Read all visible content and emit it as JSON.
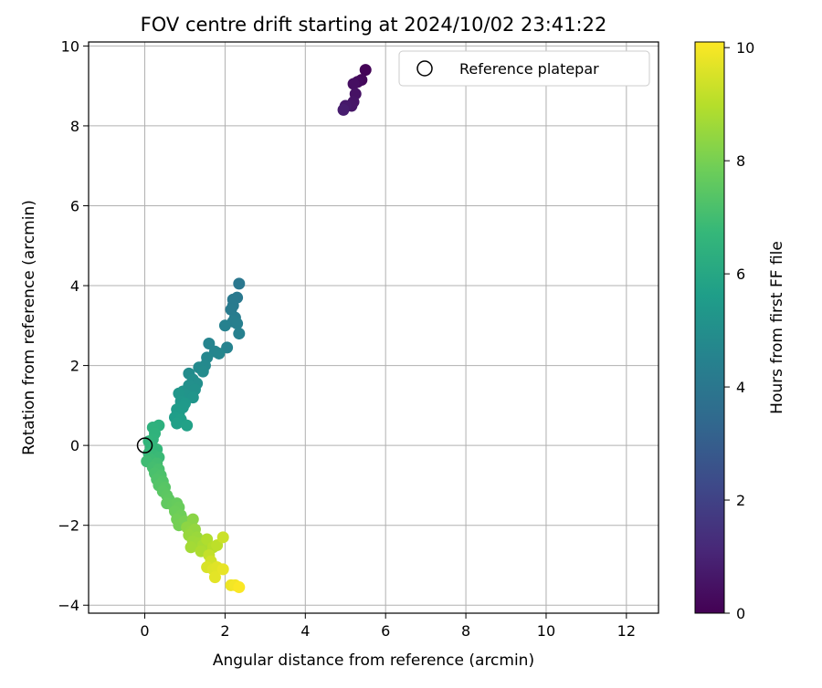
{
  "chart_data": {
    "type": "scatter",
    "title": "FOV centre drift starting at 2024/10/02 23:41:22",
    "xlabel": "Angular distance from reference (arcmin)",
    "ylabel": "Rotation from reference (arcmin)",
    "xlim": [
      -1.4,
      12.8
    ],
    "ylim": [
      -4.2,
      10.1
    ],
    "xticks": [
      0,
      2,
      4,
      6,
      8,
      10,
      12
    ],
    "yticks": [
      -4,
      -2,
      0,
      2,
      4,
      6,
      8,
      10
    ],
    "grid": true,
    "legend": {
      "placement": "top-right",
      "entries": [
        "Reference platepar"
      ]
    },
    "reference_point": {
      "x": 0,
      "y": 0
    },
    "colorbar": {
      "label": "Hours from first FF file",
      "range": [
        0,
        10.1
      ],
      "ticks": [
        0,
        2,
        4,
        6,
        8,
        10
      ],
      "colormap": [
        "#440154",
        "#482878",
        "#3e4989",
        "#31688e",
        "#26828e",
        "#1f9e89",
        "#35b779",
        "#6ece58",
        "#b5de2b",
        "#fde725"
      ]
    },
    "points": [
      {
        "x": 5.5,
        "y": 9.4,
        "h": 0.1
      },
      {
        "x": 5.4,
        "y": 9.15,
        "h": 0.2
      },
      {
        "x": 5.3,
        "y": 9.1,
        "h": 0.3
      },
      {
        "x": 5.2,
        "y": 9.05,
        "h": 0.4
      },
      {
        "x": 5.25,
        "y": 8.8,
        "h": 0.5
      },
      {
        "x": 5.2,
        "y": 8.6,
        "h": 0.55
      },
      {
        "x": 5.15,
        "y": 8.5,
        "h": 0.6
      },
      {
        "x": 5.0,
        "y": 8.5,
        "h": 0.7
      },
      {
        "x": 4.95,
        "y": 8.4,
        "h": 0.8
      },
      {
        "x": 2.35,
        "y": 4.05,
        "h": 4.0
      },
      {
        "x": 2.3,
        "y": 3.7,
        "h": 4.05
      },
      {
        "x": 2.2,
        "y": 3.65,
        "h": 4.1
      },
      {
        "x": 2.2,
        "y": 3.5,
        "h": 4.15
      },
      {
        "x": 2.15,
        "y": 3.4,
        "h": 4.2
      },
      {
        "x": 2.25,
        "y": 3.2,
        "h": 4.25
      },
      {
        "x": 2.2,
        "y": 3.1,
        "h": 4.3
      },
      {
        "x": 2.3,
        "y": 3.05,
        "h": 4.35
      },
      {
        "x": 2.35,
        "y": 2.8,
        "h": 4.4
      },
      {
        "x": 2.0,
        "y": 3.0,
        "h": 4.45
      },
      {
        "x": 2.05,
        "y": 2.45,
        "h": 4.5
      },
      {
        "x": 1.6,
        "y": 2.55,
        "h": 4.55
      },
      {
        "x": 1.75,
        "y": 2.35,
        "h": 4.6
      },
      {
        "x": 1.85,
        "y": 2.3,
        "h": 4.65
      },
      {
        "x": 1.55,
        "y": 2.2,
        "h": 4.7
      },
      {
        "x": 1.5,
        "y": 2.0,
        "h": 4.75
      },
      {
        "x": 1.35,
        "y": 1.95,
        "h": 4.8
      },
      {
        "x": 1.45,
        "y": 1.85,
        "h": 4.85
      },
      {
        "x": 1.1,
        "y": 1.8,
        "h": 4.9
      },
      {
        "x": 1.2,
        "y": 1.65,
        "h": 4.95
      },
      {
        "x": 1.3,
        "y": 1.55,
        "h": 5.0
      },
      {
        "x": 1.1,
        "y": 1.5,
        "h": 5.05
      },
      {
        "x": 1.25,
        "y": 1.4,
        "h": 5.1
      },
      {
        "x": 0.95,
        "y": 1.35,
        "h": 5.15
      },
      {
        "x": 1.05,
        "y": 1.25,
        "h": 5.2
      },
      {
        "x": 1.2,
        "y": 1.2,
        "h": 5.25
      },
      {
        "x": 0.85,
        "y": 1.3,
        "h": 5.3
      },
      {
        "x": 0.9,
        "y": 1.1,
        "h": 5.35
      },
      {
        "x": 1.0,
        "y": 1.05,
        "h": 5.4
      },
      {
        "x": 0.95,
        "y": 0.95,
        "h": 5.45
      },
      {
        "x": 0.8,
        "y": 0.9,
        "h": 5.5
      },
      {
        "x": 0.85,
        "y": 0.8,
        "h": 5.55
      },
      {
        "x": 0.75,
        "y": 0.7,
        "h": 5.6
      },
      {
        "x": 0.9,
        "y": 0.65,
        "h": 5.65
      },
      {
        "x": 0.8,
        "y": 0.55,
        "h": 5.7
      },
      {
        "x": 1.05,
        "y": 0.5,
        "h": 5.75
      },
      {
        "x": 0.35,
        "y": 0.5,
        "h": 6.4
      },
      {
        "x": 0.2,
        "y": 0.45,
        "h": 6.45
      },
      {
        "x": 0.25,
        "y": 0.3,
        "h": 6.5
      },
      {
        "x": 0.2,
        "y": 0.15,
        "h": 6.55
      },
      {
        "x": 0.1,
        "y": 0.1,
        "h": 6.6
      },
      {
        "x": 0.15,
        "y": -0.05,
        "h": 6.65
      },
      {
        "x": 0.3,
        "y": -0.1,
        "h": 6.7
      },
      {
        "x": 0.1,
        "y": -0.2,
        "h": 6.75
      },
      {
        "x": 0.25,
        "y": -0.25,
        "h": 6.8
      },
      {
        "x": 0.35,
        "y": -0.3,
        "h": 6.85
      },
      {
        "x": 0.15,
        "y": -0.35,
        "h": 6.9
      },
      {
        "x": 0.05,
        "y": -0.4,
        "h": 6.95
      },
      {
        "x": 0.3,
        "y": -0.45,
        "h": 7.0
      },
      {
        "x": 0.2,
        "y": -0.55,
        "h": 7.05
      },
      {
        "x": 0.35,
        "y": -0.6,
        "h": 7.1
      },
      {
        "x": 0.25,
        "y": -0.7,
        "h": 7.15
      },
      {
        "x": 0.4,
        "y": -0.75,
        "h": 7.2
      },
      {
        "x": 0.3,
        "y": -0.85,
        "h": 7.25
      },
      {
        "x": 0.45,
        "y": -0.9,
        "h": 7.3
      },
      {
        "x": 0.35,
        "y": -1.0,
        "h": 7.35
      },
      {
        "x": 0.5,
        "y": -1.05,
        "h": 7.4
      },
      {
        "x": 0.45,
        "y": -1.15,
        "h": 7.45
      },
      {
        "x": 0.55,
        "y": -1.25,
        "h": 7.5
      },
      {
        "x": 0.6,
        "y": -1.35,
        "h": 7.55
      },
      {
        "x": 0.55,
        "y": -1.45,
        "h": 7.6
      },
      {
        "x": 0.7,
        "y": -1.5,
        "h": 7.65
      },
      {
        "x": 0.8,
        "y": -1.45,
        "h": 7.7
      },
      {
        "x": 0.85,
        "y": -1.55,
        "h": 7.75
      },
      {
        "x": 0.75,
        "y": -1.65,
        "h": 7.8
      },
      {
        "x": 0.9,
        "y": -1.75,
        "h": 7.85
      },
      {
        "x": 0.8,
        "y": -1.85,
        "h": 7.9
      },
      {
        "x": 0.85,
        "y": -2.0,
        "h": 7.95
      },
      {
        "x": 1.0,
        "y": -1.9,
        "h": 8.0
      },
      {
        "x": 1.2,
        "y": -1.85,
        "h": 8.3
      },
      {
        "x": 1.05,
        "y": -2.05,
        "h": 8.35
      },
      {
        "x": 1.15,
        "y": -2.15,
        "h": 8.4
      },
      {
        "x": 1.25,
        "y": -2.1,
        "h": 8.45
      },
      {
        "x": 1.1,
        "y": -2.25,
        "h": 8.5
      },
      {
        "x": 1.3,
        "y": -2.3,
        "h": 8.55
      },
      {
        "x": 1.2,
        "y": -2.4,
        "h": 8.6
      },
      {
        "x": 1.35,
        "y": -2.45,
        "h": 8.65
      },
      {
        "x": 1.15,
        "y": -2.55,
        "h": 8.7
      },
      {
        "x": 1.45,
        "y": -2.5,
        "h": 8.75
      },
      {
        "x": 1.55,
        "y": -2.6,
        "h": 8.8
      },
      {
        "x": 1.4,
        "y": -2.65,
        "h": 8.85
      },
      {
        "x": 1.55,
        "y": -2.35,
        "h": 8.9
      },
      {
        "x": 1.7,
        "y": -2.55,
        "h": 9.0
      },
      {
        "x": 1.8,
        "y": -2.5,
        "h": 9.1
      },
      {
        "x": 1.6,
        "y": -2.75,
        "h": 9.2
      },
      {
        "x": 1.95,
        "y": -2.3,
        "h": 9.3
      },
      {
        "x": 1.65,
        "y": -2.9,
        "h": 9.4
      },
      {
        "x": 1.55,
        "y": -3.05,
        "h": 9.5
      },
      {
        "x": 1.7,
        "y": -3.1,
        "h": 9.6
      },
      {
        "x": 1.8,
        "y": -3.05,
        "h": 9.65
      },
      {
        "x": 1.75,
        "y": -3.3,
        "h": 9.7
      },
      {
        "x": 1.95,
        "y": -3.1,
        "h": 9.75
      },
      {
        "x": 2.15,
        "y": -3.5,
        "h": 9.85
      },
      {
        "x": 2.25,
        "y": -3.5,
        "h": 9.95
      },
      {
        "x": 2.35,
        "y": -3.55,
        "h": 10.05
      }
    ]
  }
}
